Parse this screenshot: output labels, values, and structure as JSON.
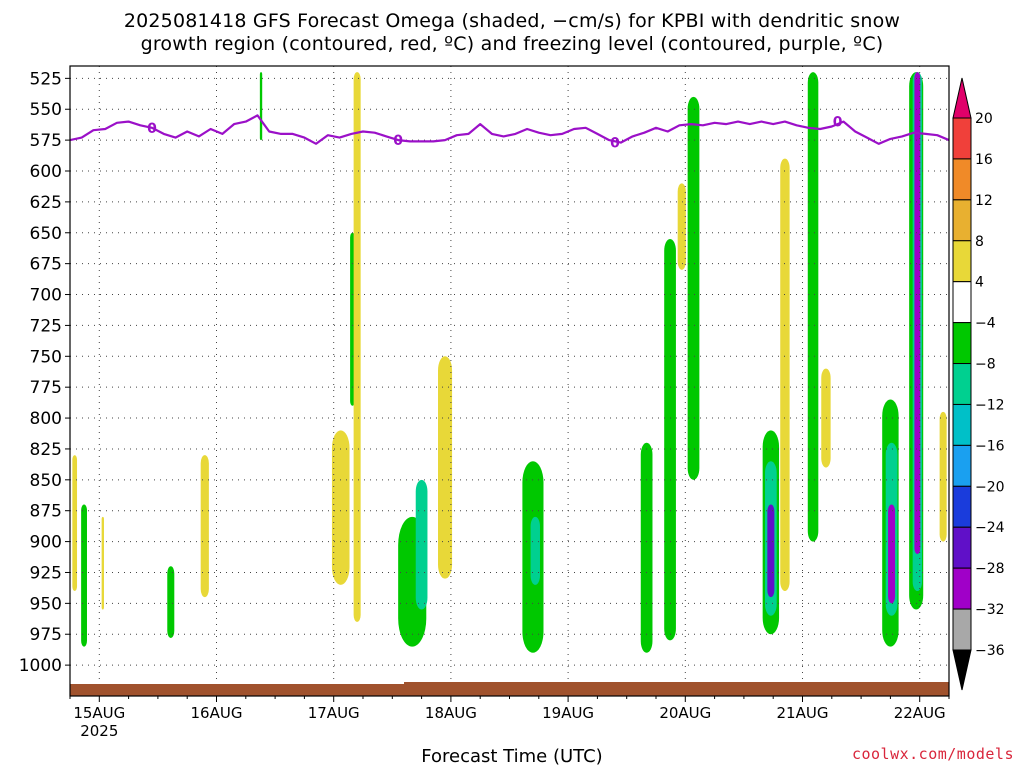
{
  "title_line1": "2025081418 GFS Forecast Omega (shaded, −cm/s) for KPBI with dendritic snow",
  "title_line2": "growth region (contoured, red, ºC) and freezing level (contoured, purple, ºC)",
  "credit": "coolwx.com/models",
  "chart_data": {
    "type": "time-height cross section",
    "xlabel": "Forecast Time (UTC)",
    "ylabel": "",
    "x_ticks": [
      "15AUG",
      "16AUG",
      "17AUG",
      "18AUG",
      "19AUG",
      "20AUG",
      "21AUG",
      "22AUG"
    ],
    "x_year_label": "2025",
    "x_range_days": [
      14.75,
      22.25
    ],
    "y_ticks": [
      525,
      550,
      575,
      600,
      625,
      650,
      675,
      700,
      725,
      750,
      775,
      800,
      825,
      850,
      875,
      900,
      925,
      950,
      975,
      1000
    ],
    "y_range_hpa": [
      515,
      1025
    ],
    "grid": true,
    "colorbar": {
      "labels": [
        "20",
        "16",
        "12",
        "8",
        "4",
        "−4",
        "−8",
        "−12",
        "−16",
        "−20",
        "−24",
        "−28",
        "−32",
        "−36"
      ],
      "colors": [
        "#e0006a",
        "#f0403a",
        "#f08a28",
        "#e8b030",
        "#e8d838",
        "#ffffff",
        "#00c800",
        "#00d090",
        "#00c0c8",
        "#1aa0f0",
        "#1a3cdc",
        "#6010c8",
        "#a000c8",
        "#a8a8a8",
        "#000000"
      ]
    },
    "freezing_level": {
      "label": "0",
      "color": "#9b10c8",
      "points": [
        [
          14.75,
          575
        ],
        [
          14.85,
          573
        ],
        [
          14.95,
          567
        ],
        [
          15.05,
          566
        ],
        [
          15.15,
          561
        ],
        [
          15.25,
          560
        ],
        [
          15.35,
          563
        ],
        [
          15.45,
          565
        ],
        [
          15.55,
          570
        ],
        [
          15.65,
          573
        ],
        [
          15.75,
          568
        ],
        [
          15.85,
          572
        ],
        [
          15.95,
          566
        ],
        [
          16.05,
          570
        ],
        [
          16.15,
          562
        ],
        [
          16.25,
          560
        ],
        [
          16.35,
          555
        ],
        [
          16.45,
          568
        ],
        [
          16.55,
          570
        ],
        [
          16.65,
          570
        ],
        [
          16.75,
          573
        ],
        [
          16.85,
          578
        ],
        [
          16.95,
          571
        ],
        [
          17.05,
          573
        ],
        [
          17.15,
          570
        ],
        [
          17.25,
          568
        ],
        [
          17.35,
          569
        ],
        [
          17.45,
          572
        ],
        [
          17.55,
          575
        ],
        [
          17.65,
          576
        ],
        [
          17.75,
          576
        ],
        [
          17.85,
          576
        ],
        [
          17.95,
          575
        ],
        [
          18.05,
          571
        ],
        [
          18.15,
          570
        ],
        [
          18.25,
          562
        ],
        [
          18.35,
          570
        ],
        [
          18.45,
          572
        ],
        [
          18.55,
          570
        ],
        [
          18.65,
          566
        ],
        [
          18.75,
          569
        ],
        [
          18.85,
          571
        ],
        [
          18.95,
          570
        ],
        [
          19.05,
          566
        ],
        [
          19.15,
          565
        ],
        [
          19.25,
          570
        ],
        [
          19.35,
          575
        ],
        [
          19.45,
          577
        ],
        [
          19.55,
          572
        ],
        [
          19.65,
          569
        ],
        [
          19.75,
          565
        ],
        [
          19.85,
          568
        ],
        [
          19.95,
          563
        ],
        [
          20.05,
          562
        ],
        [
          20.15,
          563
        ],
        [
          20.25,
          561
        ],
        [
          20.35,
          562
        ],
        [
          20.45,
          560
        ],
        [
          20.55,
          562
        ],
        [
          20.65,
          560
        ],
        [
          20.75,
          562
        ],
        [
          20.85,
          560
        ],
        [
          20.95,
          563
        ],
        [
          21.05,
          565
        ],
        [
          21.15,
          566
        ],
        [
          21.25,
          564
        ],
        [
          21.35,
          560
        ],
        [
          21.45,
          568
        ],
        [
          21.55,
          573
        ],
        [
          21.65,
          578
        ],
        [
          21.75,
          574
        ],
        [
          21.85,
          572
        ],
        [
          21.95,
          569
        ],
        [
          22.05,
          570
        ],
        [
          22.15,
          571
        ],
        [
          22.25,
          575
        ]
      ],
      "label_positions": [
        [
          15.45,
          565
        ],
        [
          17.55,
          575
        ],
        [
          19.4,
          577
        ],
        [
          21.3,
          560
        ]
      ]
    },
    "shaded_regions": [
      {
        "x": 14.87,
        "p1": 870,
        "p2": 985,
        "w": 0.05,
        "omega": -6
      },
      {
        "x": 14.79,
        "p1": 830,
        "p2": 940,
        "w": 0.04,
        "omega": 5
      },
      {
        "x": 15.03,
        "p1": 880,
        "p2": 955,
        "w": 0.02,
        "omega": 5
      },
      {
        "x": 15.61,
        "p1": 920,
        "p2": 978,
        "w": 0.06,
        "omega": -6
      },
      {
        "x": 15.9,
        "p1": 830,
        "p2": 945,
        "w": 0.07,
        "omega": 5
      },
      {
        "x": 16.38,
        "p1": 520,
        "p2": 575,
        "w": 0.02,
        "omega": -6
      },
      {
        "x": 17.06,
        "p1": 810,
        "p2": 935,
        "w": 0.15,
        "omega": 5
      },
      {
        "x": 17.16,
        "p1": 650,
        "p2": 790,
        "w": 0.04,
        "omega": -6
      },
      {
        "x": 17.2,
        "p1": 520,
        "p2": 965,
        "w": 0.06,
        "omega": 5
      },
      {
        "x": 17.67,
        "p1": 880,
        "p2": 985,
        "w": 0.24,
        "omega": -6
      },
      {
        "x": 17.75,
        "p1": 850,
        "p2": 955,
        "w": 0.1,
        "omega": -10
      },
      {
        "x": 17.95,
        "p1": 750,
        "p2": 930,
        "w": 0.12,
        "omega": 5
      },
      {
        "x": 18.7,
        "p1": 835,
        "p2": 990,
        "w": 0.18,
        "omega": -6
      },
      {
        "x": 18.72,
        "p1": 880,
        "p2": 935,
        "w": 0.08,
        "omega": -10
      },
      {
        "x": 19.67,
        "p1": 820,
        "p2": 990,
        "w": 0.1,
        "omega": -6
      },
      {
        "x": 19.87,
        "p1": 655,
        "p2": 980,
        "w": 0.1,
        "omega": -6
      },
      {
        "x": 20.07,
        "p1": 540,
        "p2": 850,
        "w": 0.1,
        "omega": -6
      },
      {
        "x": 19.97,
        "p1": 610,
        "p2": 680,
        "w": 0.07,
        "omega": 5
      },
      {
        "x": 20.73,
        "p1": 810,
        "p2": 975,
        "w": 0.14,
        "omega": -6
      },
      {
        "x": 20.73,
        "p1": 835,
        "p2": 960,
        "w": 0.1,
        "omega": -10
      },
      {
        "x": 20.73,
        "p1": 870,
        "p2": 945,
        "w": 0.06,
        "omega": -24
      },
      {
        "x": 20.85,
        "p1": 590,
        "p2": 940,
        "w": 0.08,
        "omega": 5
      },
      {
        "x": 21.09,
        "p1": 520,
        "p2": 900,
        "w": 0.09,
        "omega": -6
      },
      {
        "x": 21.2,
        "p1": 760,
        "p2": 840,
        "w": 0.08,
        "omega": 5
      },
      {
        "x": 21.75,
        "p1": 785,
        "p2": 985,
        "w": 0.14,
        "omega": -6
      },
      {
        "x": 21.76,
        "p1": 820,
        "p2": 960,
        "w": 0.1,
        "omega": -10
      },
      {
        "x": 21.76,
        "p1": 870,
        "p2": 950,
        "w": 0.06,
        "omega": -28
      },
      {
        "x": 21.97,
        "p1": 520,
        "p2": 955,
        "w": 0.12,
        "omega": -6
      },
      {
        "x": 21.98,
        "p1": 520,
        "p2": 940,
        "w": 0.08,
        "omega": -10
      },
      {
        "x": 21.98,
        "p1": 520,
        "p2": 910,
        "w": 0.05,
        "omega": -28
      },
      {
        "x": 22.2,
        "p1": 795,
        "p2": 900,
        "w": 0.06,
        "omega": 5
      }
    ],
    "terrain_color": "#a0522d"
  }
}
